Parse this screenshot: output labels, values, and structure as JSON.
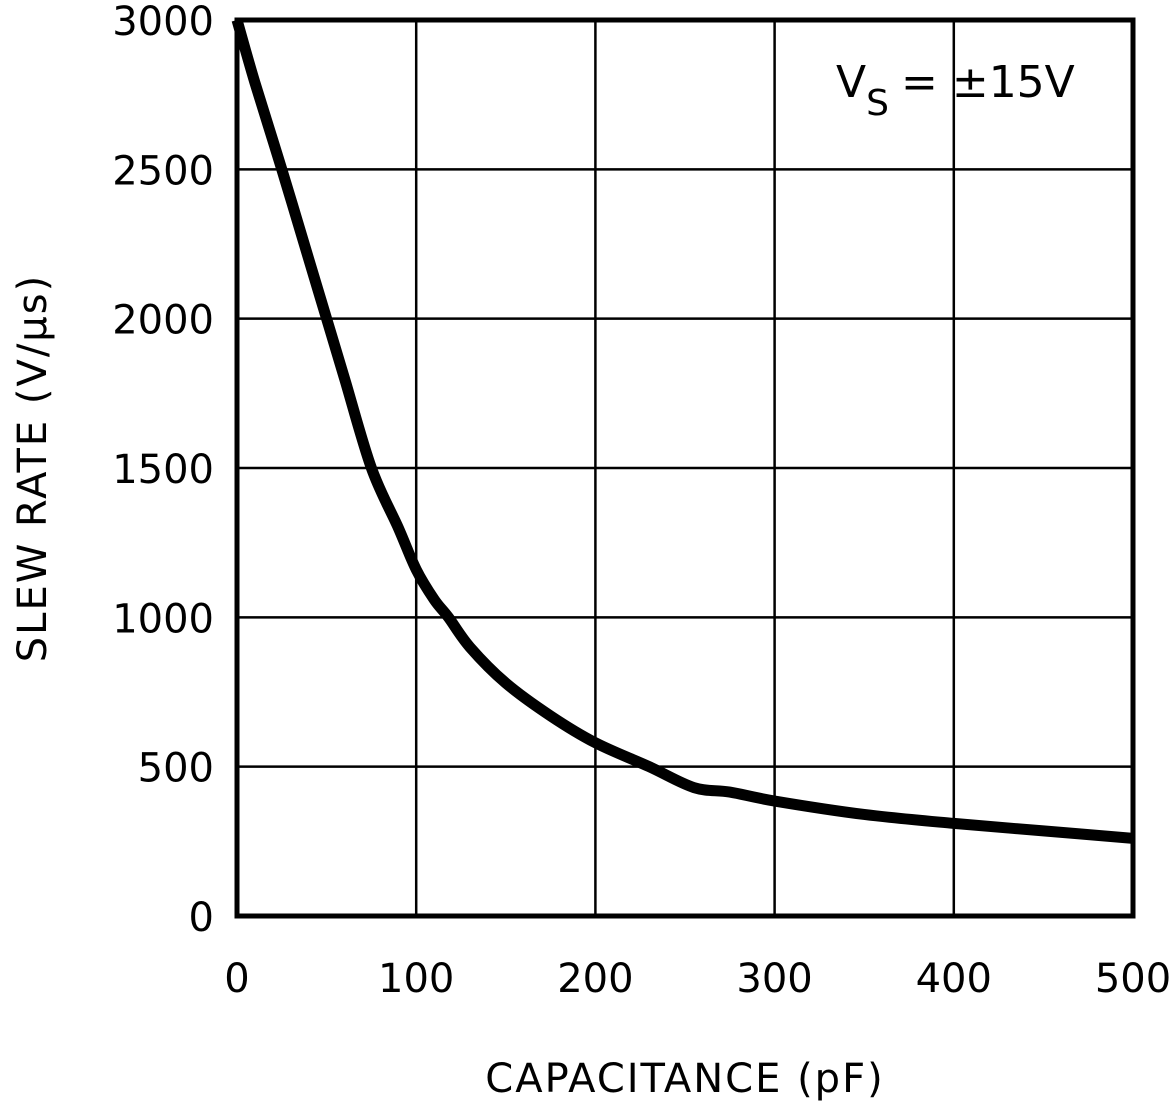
{
  "chart_data": {
    "type": "line",
    "title": "",
    "xlabel": "CAPACITANCE (pF)",
    "ylabel": "SLEW RATE (V/µs)",
    "xlim": [
      0,
      500
    ],
    "ylim": [
      0,
      3000
    ],
    "x_ticks": [
      "0",
      "100",
      "200",
      "300",
      "400",
      "500"
    ],
    "y_ticks": [
      "0",
      "500",
      "1000",
      "1500",
      "2000",
      "2500",
      "3000"
    ],
    "grid": true,
    "legend": null,
    "annotations": [
      {
        "text": "V_S = ±15V",
        "position": "top-right"
      }
    ],
    "series": [
      {
        "name": "V_S = ±15V",
        "color": "#000000",
        "x": [
          0,
          10,
          25,
          40,
          50,
          60,
          75,
          90,
          100,
          110,
          118,
          130,
          150,
          175,
          200,
          230,
          255,
          275,
          300,
          350,
          400,
          450,
          500
        ],
        "y": [
          3000,
          2790,
          2500,
          2200,
          2000,
          1800,
          1500,
          1300,
          1160,
          1060,
          1000,
          900,
          780,
          670,
          580,
          500,
          430,
          415,
          385,
          340,
          310,
          285,
          260
        ]
      }
    ]
  },
  "labels": {
    "xlabel": "CAPACITANCE (pF)",
    "ylabel": "SLEW RATE (V/µs)",
    "annotation_main": "V",
    "annotation_sub": "S",
    "annotation_rest": "= ±15V"
  }
}
